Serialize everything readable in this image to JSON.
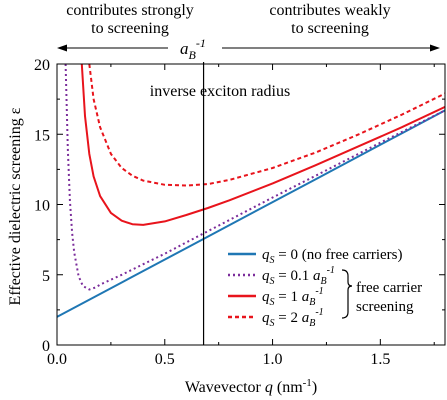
{
  "chart_data": {
    "type": "line",
    "xlabel": "Wavevector q (nm⁻¹)",
    "ylabel": "Effective dielectric screening ε",
    "xlim": [
      0,
      1.8
    ],
    "ylim": [
      0,
      20
    ],
    "x_ticks": [
      0.0,
      0.5,
      1.0,
      1.5
    ],
    "x_tick_labels": [
      "0.0",
      "0.5",
      "1.0",
      "1.5"
    ],
    "y_ticks": [
      0,
      5,
      10,
      15,
      20
    ],
    "y_tick_labels": [
      "0",
      "5",
      "10",
      "15",
      "20"
    ],
    "grid": false,
    "legend_position": "lower-right",
    "inverse_exciton_radius_q": 0.68,
    "annotations": {
      "left_region": "contributes strongly\nto screening",
      "right_region": "contributes weakly\nto screening",
      "arrow_label_base": "a",
      "arrow_label_sub": "B",
      "arrow_label_sup": "-1",
      "vline_label": "inverse exciton radius",
      "brace_label": "free carrier\nscreening"
    },
    "colors": {
      "blue": "#1f77b4",
      "purple": "#7b2d9b",
      "red": "#e8141c"
    },
    "series": [
      {
        "legend_value": "= 0",
        "legend_note": "(no free carriers)",
        "legend_unit": false,
        "style": "solid",
        "color": "#1f77b4",
        "x": [
          0.0,
          0.3,
          0.6,
          0.9,
          1.2,
          1.5,
          1.8
        ],
        "y": [
          2.0,
          4.45,
          6.9,
          9.35,
          11.8,
          14.25,
          16.7
        ]
      },
      {
        "legend_value": "= 0.1",
        "legend_note": "",
        "legend_unit": true,
        "style": "dotted",
        "color": "#7b2d9b",
        "x": [
          0.04,
          0.05,
          0.06,
          0.07,
          0.08,
          0.1,
          0.12,
          0.15,
          0.18,
          0.2,
          0.25,
          0.3,
          0.4,
          0.5,
          0.6,
          0.8,
          1.0,
          1.2,
          1.5,
          1.8
        ],
        "y": [
          20.0,
          14.0,
          10.3,
          8.0,
          6.6,
          4.9,
          4.2,
          3.95,
          4.1,
          4.3,
          4.65,
          5.0,
          5.75,
          6.5,
          7.3,
          8.9,
          10.5,
          12.05,
          14.4,
          16.7
        ]
      },
      {
        "legend_value": "= 1",
        "legend_note": "",
        "legend_unit": true,
        "style": "solid",
        "color": "#e8141c",
        "x": [
          0.115,
          0.13,
          0.15,
          0.17,
          0.2,
          0.25,
          0.3,
          0.35,
          0.4,
          0.5,
          0.6,
          0.7,
          0.8,
          1.0,
          1.2,
          1.4,
          1.6,
          1.8
        ],
        "y": [
          20.0,
          16.3,
          13.6,
          12.0,
          10.6,
          9.4,
          8.85,
          8.6,
          8.55,
          8.8,
          9.25,
          9.75,
          10.3,
          11.5,
          12.8,
          14.15,
          15.5,
          16.95
        ]
      },
      {
        "legend_value": "= 2",
        "legend_note": "",
        "legend_unit": true,
        "style": "dashed",
        "color": "#e8141c",
        "x": [
          0.15,
          0.17,
          0.2,
          0.25,
          0.3,
          0.35,
          0.4,
          0.5,
          0.6,
          0.7,
          0.8,
          1.0,
          1.2,
          1.4,
          1.6,
          1.8
        ],
        "y": [
          20.0,
          17.5,
          15.5,
          13.6,
          12.6,
          12.05,
          11.7,
          11.4,
          11.35,
          11.45,
          11.75,
          12.6,
          13.7,
          15.0,
          16.4,
          17.9
        ]
      }
    ]
  }
}
